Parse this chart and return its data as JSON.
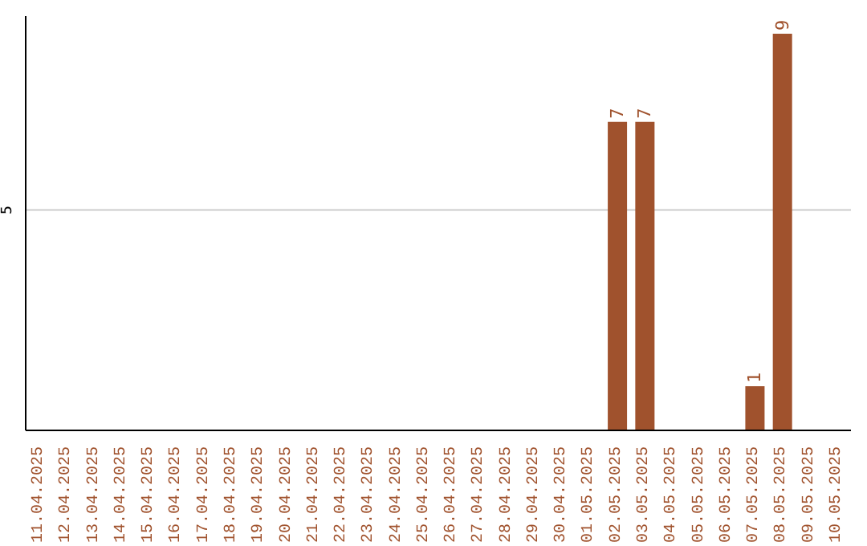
{
  "chart_data": {
    "type": "bar",
    "categories": [
      "11.04.2025",
      "12.04.2025",
      "13.04.2025",
      "14.04.2025",
      "15.04.2025",
      "16.04.2025",
      "17.04.2025",
      "18.04.2025",
      "19.04.2025",
      "20.04.2025",
      "21.04.2025",
      "22.04.2025",
      "23.04.2025",
      "24.04.2025",
      "25.04.2025",
      "26.04.2025",
      "27.04.2025",
      "28.04.2025",
      "29.04.2025",
      "30.04.2025",
      "01.05.2025",
      "02.05.2025",
      "03.05.2025",
      "04.05.2025",
      "05.05.2025",
      "06.05.2025",
      "07.05.2025",
      "08.05.2025",
      "09.05.2025",
      "10.05.2025"
    ],
    "values": [
      null,
      null,
      null,
      null,
      null,
      null,
      null,
      null,
      null,
      null,
      null,
      null,
      null,
      null,
      null,
      null,
      null,
      null,
      null,
      null,
      null,
      7,
      7,
      null,
      null,
      null,
      1,
      9,
      null,
      null
    ],
    "color": "#a0522d",
    "ylim": [
      0,
      9.4
    ],
    "yticks": [
      5
    ],
    "grid": "y",
    "data_labels": true
  }
}
